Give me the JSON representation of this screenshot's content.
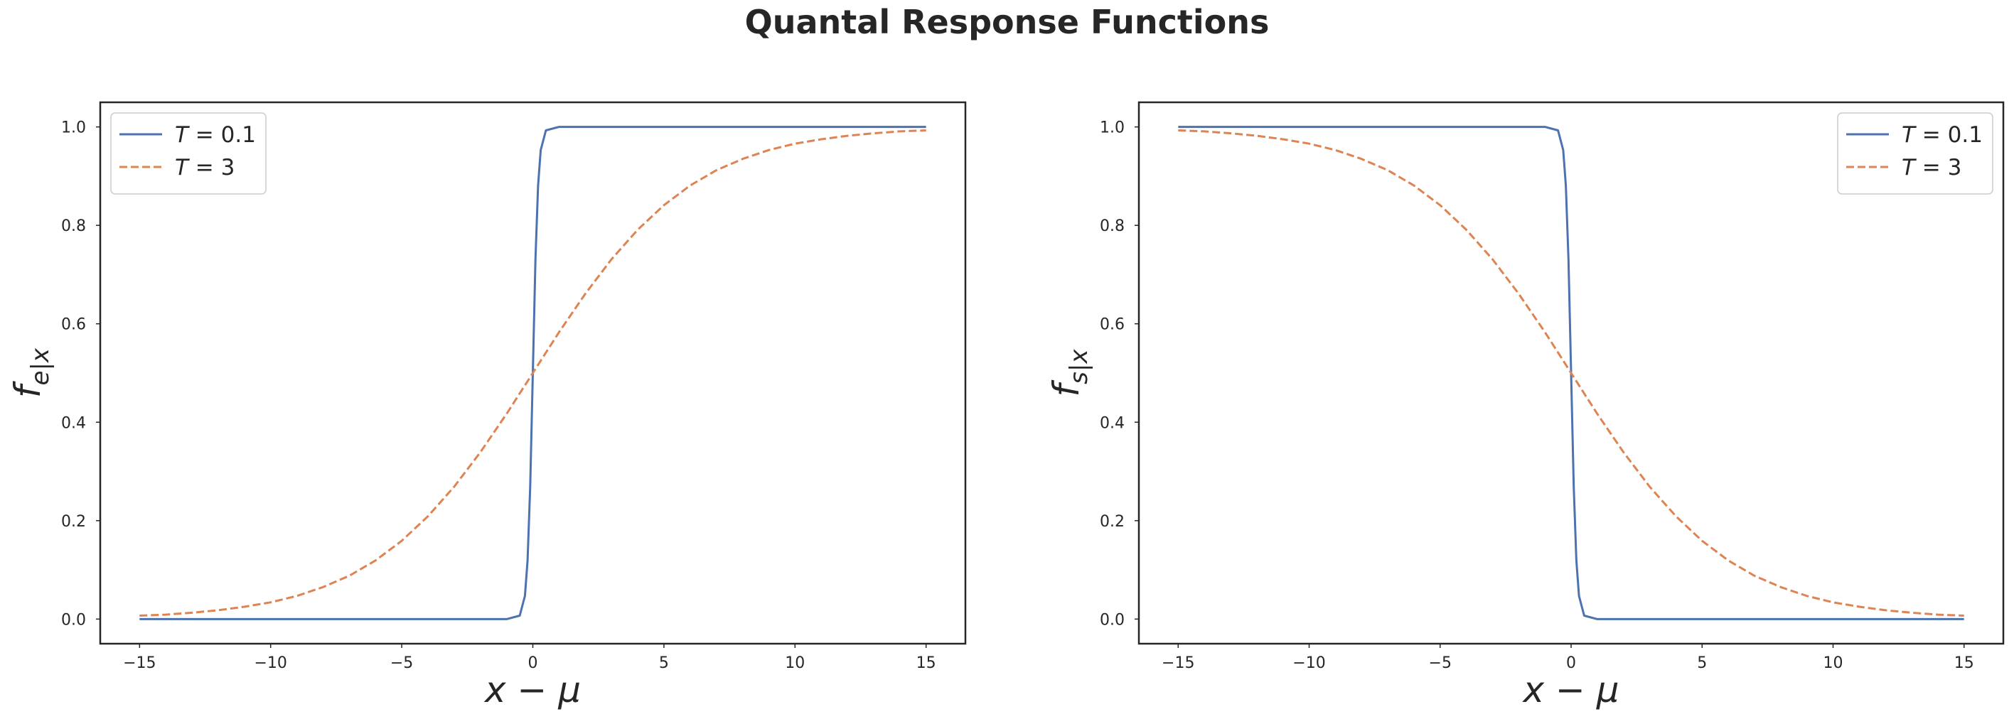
{
  "title": "Quantal Response Functions",
  "chart_data": [
    {
      "type": "line",
      "id": "left",
      "xlabel": "x − μ",
      "ylabel_main": "f",
      "ylabel_sub": "e|x",
      "xlim": [
        -16.5,
        16.5
      ],
      "ylim": [
        -0.05,
        1.05
      ],
      "xticks": [
        -15,
        -10,
        -5,
        0,
        5,
        10,
        15
      ],
      "xtick_labels": [
        "−15",
        "−10",
        "−5",
        "0",
        "5",
        "10",
        "15"
      ],
      "yticks": [
        0.0,
        0.2,
        0.4,
        0.6,
        0.8,
        1.0
      ],
      "ytick_labels": [
        "0.0",
        "0.2",
        "0.4",
        "0.6",
        "0.8",
        "1.0"
      ],
      "grid": false,
      "legend_position": "upper left",
      "series": [
        {
          "name": "T = 0.1",
          "legend_var": "T",
          "legend_rest": " = 0.1",
          "color": "#4c72b0",
          "dash": "solid",
          "x": [
            -15,
            -10,
            -5,
            -1,
            -0.5,
            -0.3,
            -0.2,
            -0.1,
            0,
            0.1,
            0.2,
            0.3,
            0.5,
            1,
            5,
            10,
            15
          ],
          "y": [
            0.0,
            0.0,
            0.0,
            0.0,
            0.007,
            0.047,
            0.119,
            0.269,
            0.5,
            0.731,
            0.881,
            0.953,
            0.993,
            1.0,
            1.0,
            1.0,
            1.0
          ]
        },
        {
          "name": "T = 3",
          "legend_var": "T",
          "legend_rest": " = 3",
          "color": "#dd8452",
          "dash": "dashed",
          "x": [
            -15,
            -14,
            -13,
            -12,
            -11,
            -10,
            -9,
            -8,
            -7,
            -6,
            -5,
            -4,
            -3,
            -2,
            -1,
            0,
            1,
            2,
            3,
            4,
            5,
            6,
            7,
            8,
            9,
            10,
            11,
            12,
            13,
            14,
            15
          ],
          "y": [
            0.007,
            0.009,
            0.013,
            0.018,
            0.025,
            0.034,
            0.047,
            0.065,
            0.088,
            0.119,
            0.159,
            0.209,
            0.269,
            0.339,
            0.417,
            0.5,
            0.583,
            0.661,
            0.731,
            0.791,
            0.841,
            0.881,
            0.912,
            0.935,
            0.953,
            0.966,
            0.975,
            0.982,
            0.987,
            0.991,
            0.993
          ]
        }
      ]
    },
    {
      "type": "line",
      "id": "right",
      "xlabel": "x − μ",
      "ylabel_main": "f",
      "ylabel_sub": "s|x",
      "xlim": [
        -16.5,
        16.5
      ],
      "ylim": [
        -0.05,
        1.05
      ],
      "xticks": [
        -15,
        -10,
        -5,
        0,
        5,
        10,
        15
      ],
      "xtick_labels": [
        "−15",
        "−10",
        "−5",
        "0",
        "5",
        "10",
        "15"
      ],
      "yticks": [
        0.0,
        0.2,
        0.4,
        0.6,
        0.8,
        1.0
      ],
      "ytick_labels": [
        "0.0",
        "0.2",
        "0.4",
        "0.6",
        "0.8",
        "1.0"
      ],
      "grid": false,
      "legend_position": "upper right",
      "series": [
        {
          "name": "T = 0.1",
          "legend_var": "T",
          "legend_rest": " = 0.1",
          "color": "#4c72b0",
          "dash": "solid",
          "x": [
            -15,
            -10,
            -5,
            -1,
            -0.5,
            -0.3,
            -0.2,
            -0.1,
            0,
            0.1,
            0.2,
            0.3,
            0.5,
            1,
            5,
            10,
            15
          ],
          "y": [
            1.0,
            1.0,
            1.0,
            1.0,
            0.993,
            0.953,
            0.881,
            0.731,
            0.5,
            0.269,
            0.119,
            0.047,
            0.007,
            0.0,
            0.0,
            0.0,
            0.0
          ]
        },
        {
          "name": "T = 3",
          "legend_var": "T",
          "legend_rest": " = 3",
          "color": "#dd8452",
          "dash": "dashed",
          "x": [
            -15,
            -14,
            -13,
            -12,
            -11,
            -10,
            -9,
            -8,
            -7,
            -6,
            -5,
            -4,
            -3,
            -2,
            -1,
            0,
            1,
            2,
            3,
            4,
            5,
            6,
            7,
            8,
            9,
            10,
            11,
            12,
            13,
            14,
            15
          ],
          "y": [
            0.993,
            0.991,
            0.987,
            0.982,
            0.975,
            0.966,
            0.953,
            0.935,
            0.912,
            0.881,
            0.841,
            0.791,
            0.731,
            0.661,
            0.583,
            0.5,
            0.417,
            0.339,
            0.269,
            0.209,
            0.159,
            0.119,
            0.088,
            0.065,
            0.047,
            0.034,
            0.025,
            0.018,
            0.013,
            0.009,
            0.007
          ]
        }
      ]
    }
  ]
}
